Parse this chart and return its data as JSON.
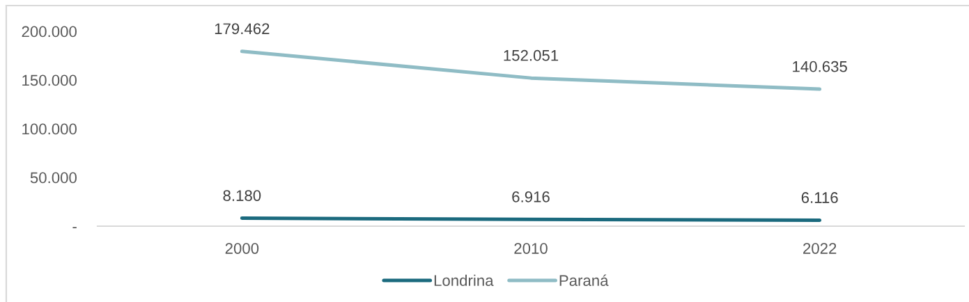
{
  "chart_data": {
    "type": "line",
    "categories": [
      "2000",
      "2010",
      "2022"
    ],
    "series": [
      {
        "name": "Londrina",
        "color": "#1b6a7e",
        "values": [
          8180,
          6916,
          6116
        ],
        "value_labels": [
          "8.180",
          "6.916",
          "6.116"
        ]
      },
      {
        "name": "Paraná",
        "color": "#8fbcc5",
        "values": [
          179462,
          152051,
          140635
        ],
        "value_labels": [
          "179.462",
          "152.051",
          "140.635"
        ]
      }
    ],
    "ylim": [
      0,
      200000
    ],
    "yticks": [
      {
        "value": 0,
        "label": "-"
      },
      {
        "value": 50000,
        "label": "50.000"
      },
      {
        "value": 100000,
        "label": "100.000"
      },
      {
        "value": 150000,
        "label": "150.000"
      },
      {
        "value": 200000,
        "label": "200.000"
      }
    ],
    "legend": "bottom"
  }
}
